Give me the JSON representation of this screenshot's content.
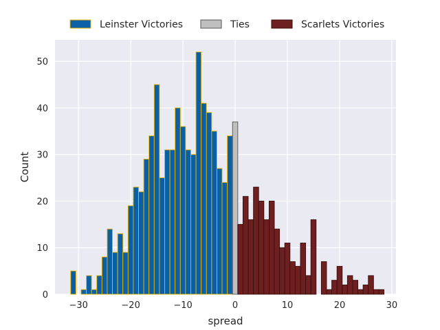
{
  "chart_data": {
    "type": "bar",
    "xlabel": "spread",
    "ylabel": "Count",
    "xlim": [
      -34.5,
      30.8
    ],
    "ylim": [
      0,
      54.6
    ],
    "xticks": [
      -30,
      -20,
      -10,
      0,
      10,
      20,
      30
    ],
    "xtick_labels": [
      "−30",
      "−20",
      "−10",
      "0",
      "10",
      "20",
      "30"
    ],
    "yticks": [
      0,
      10,
      20,
      30,
      40,
      50
    ],
    "ytick_labels": [
      "0",
      "10",
      "20",
      "30",
      "40",
      "50"
    ],
    "grid": true,
    "legend_position": "top",
    "bin_width": 1,
    "series": [
      {
        "name": "Leinster Victories",
        "color": "#0b5fa5",
        "edge_color": "#e8b500",
        "x": [
          -31,
          -30,
          -29,
          -28,
          -27,
          -26,
          -25,
          -24,
          -23,
          -22,
          -21,
          -20,
          -19,
          -18,
          -17,
          -16,
          -15,
          -14,
          -13,
          -12,
          -11,
          -10,
          -9,
          -8,
          -7,
          -6,
          -5,
          -4,
          -3,
          -2,
          -1
        ],
        "values": [
          5,
          0,
          1,
          4,
          1,
          4,
          8,
          14,
          9,
          13,
          9,
          19,
          23,
          22,
          29,
          34,
          45,
          25,
          31,
          31,
          40,
          36,
          31,
          30,
          52,
          41,
          39,
          35,
          27,
          24,
          34
        ]
      },
      {
        "name": "Ties",
        "color": "#bfbfbf",
        "edge_color": "#555555",
        "x": [
          0
        ],
        "values": [
          37
        ]
      },
      {
        "name": "Scarlets Victories",
        "color": "#6e1f1f",
        "edge_color": "#3a0f0f",
        "x": [
          1,
          2,
          3,
          4,
          5,
          6,
          7,
          8,
          9,
          10,
          11,
          12,
          13,
          14,
          15,
          16,
          17,
          18,
          19,
          20,
          21,
          22,
          23,
          24,
          25,
          26,
          27,
          28
        ],
        "values": [
          15,
          21,
          16,
          23,
          20,
          16,
          20,
          14,
          10,
          11,
          7,
          6,
          11,
          4,
          16,
          0,
          7,
          1,
          3,
          6,
          2,
          4,
          3,
          1,
          2,
          4,
          1,
          1
        ]
      }
    ]
  }
}
